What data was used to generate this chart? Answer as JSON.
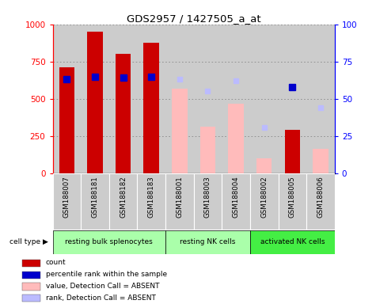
{
  "title": "GDS2957 / 1427505_a_at",
  "samples": [
    "GSM188007",
    "GSM188181",
    "GSM188182",
    "GSM188183",
    "GSM188001",
    "GSM188003",
    "GSM188004",
    "GSM188002",
    "GSM188005",
    "GSM188006"
  ],
  "count_values": [
    710,
    950,
    800,
    875,
    null,
    null,
    null,
    null,
    290,
    null
  ],
  "rank_values": [
    63,
    65,
    64,
    65,
    null,
    null,
    null,
    null,
    58,
    null
  ],
  "absent_value_values": [
    null,
    null,
    null,
    null,
    570,
    315,
    465,
    100,
    null,
    165
  ],
  "absent_rank_values": [
    null,
    null,
    null,
    null,
    63,
    55,
    62,
    31,
    null,
    44
  ],
  "cell_groups": [
    {
      "label": "resting bulk splenocytes",
      "start": 0,
      "end": 4,
      "color": "#aaffaa"
    },
    {
      "label": "resting NK cells",
      "start": 4,
      "end": 7,
      "color": "#aaffaa"
    },
    {
      "label": "activated NK cells",
      "start": 7,
      "end": 10,
      "color": "#44ee44"
    }
  ],
  "ylim_left": [
    0,
    1000
  ],
  "ylim_right": [
    0,
    100
  ],
  "yticks_left": [
    0,
    250,
    500,
    750,
    1000
  ],
  "yticks_right": [
    0,
    25,
    50,
    75,
    100
  ],
  "bar_width": 0.55,
  "count_color": "#cc0000",
  "rank_color": "#0000cc",
  "absent_value_color": "#ffbbbb",
  "absent_rank_color": "#bbbbff",
  "grid_color": "#888888",
  "bg_color": "#cccccc",
  "legend_items": [
    {
      "label": "count",
      "color": "#cc0000"
    },
    {
      "label": "percentile rank within the sample",
      "color": "#0000cc"
    },
    {
      "label": "value, Detection Call = ABSENT",
      "color": "#ffbbbb"
    },
    {
      "label": "rank, Detection Call = ABSENT",
      "color": "#bbbbff"
    }
  ]
}
